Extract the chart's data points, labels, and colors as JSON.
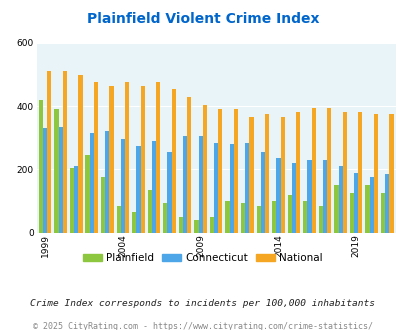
{
  "title": "Plainfield Violent Crime Index",
  "years": [
    1999,
    2000,
    2001,
    2002,
    2003,
    2004,
    2005,
    2006,
    2007,
    2008,
    2009,
    2010,
    2011,
    2012,
    2013,
    2014,
    2015,
    2016,
    2017,
    2018,
    2019,
    2020,
    2021
  ],
  "plainfield": [
    420,
    390,
    205,
    245,
    175,
    85,
    65,
    135,
    95,
    50,
    40,
    50,
    100,
    95,
    85,
    100,
    120,
    100,
    85,
    150,
    125,
    150,
    125
  ],
  "connecticut": [
    330,
    335,
    210,
    315,
    320,
    295,
    275,
    290,
    255,
    305,
    305,
    285,
    280,
    285,
    255,
    235,
    220,
    230,
    230,
    210,
    190,
    175,
    185
  ],
  "national": [
    510,
    510,
    500,
    475,
    465,
    475,
    465,
    475,
    455,
    430,
    405,
    390,
    390,
    365,
    375,
    365,
    380,
    395,
    395,
    380,
    380,
    375,
    375
  ],
  "plainfield_color": "#8dc63f",
  "connecticut_color": "#4da6e8",
  "national_color": "#f5a623",
  "bg_color": "#e8f4f8",
  "title_color": "#0066cc",
  "ylim": [
    0,
    600
  ],
  "yticks": [
    0,
    200,
    400,
    600
  ],
  "tick_years": [
    1999,
    2004,
    2009,
    2014,
    2019
  ],
  "footnote1": "Crime Index corresponds to incidents per 100,000 inhabitants",
  "footnote2": "© 2025 CityRating.com - https://www.cityrating.com/crime-statistics/",
  "legend_labels": [
    "Plainfield",
    "Connecticut",
    "National"
  ]
}
